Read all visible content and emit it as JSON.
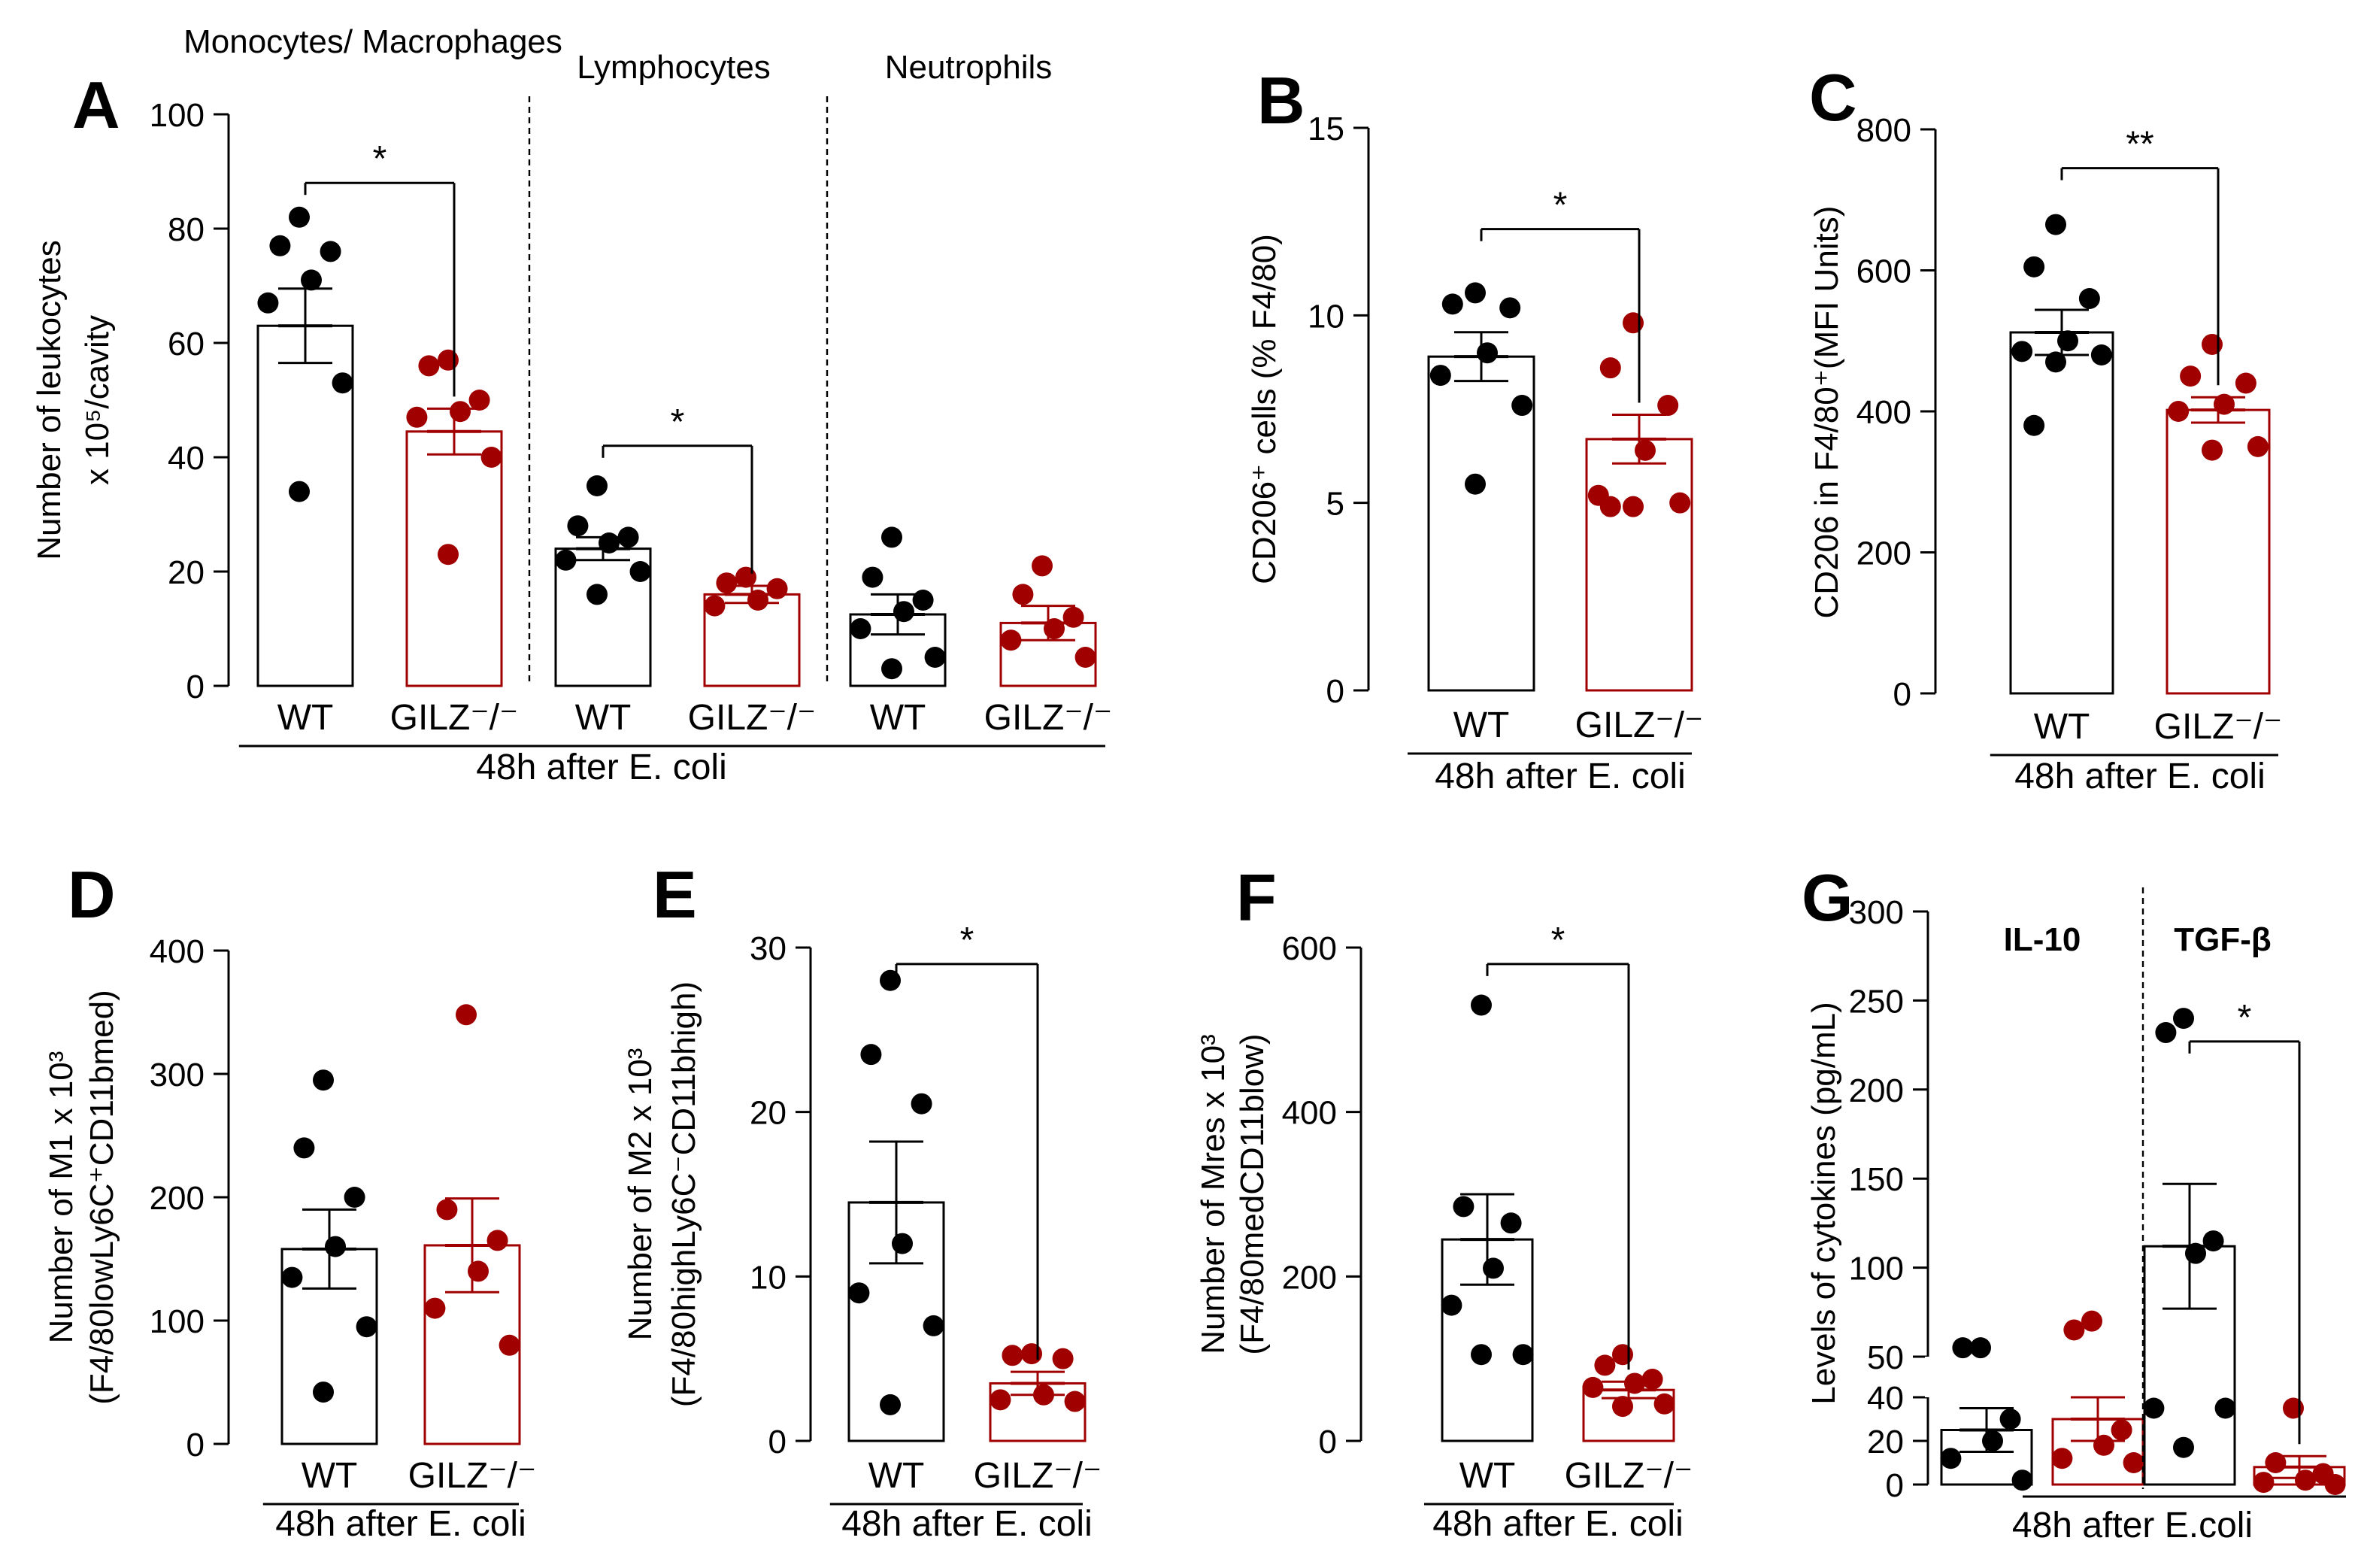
{
  "colors": {
    "wt": "#000000",
    "ko": "#a00000",
    "axis": "#000000"
  },
  "chart_data": [
    {
      "id": "A",
      "letter": "A",
      "type": "bar",
      "ylabel": [
        "Number of leukocytes",
        "x 10⁵/cavity"
      ],
      "ylim": [
        0,
        100
      ],
      "ticks": [
        0,
        20,
        40,
        60,
        80,
        100
      ],
      "categories": [
        "WT",
        "GILZ⁻/⁻",
        "WT",
        "GILZ⁻/⁻",
        "WT",
        "GILZ⁻/⁻"
      ],
      "groups": [
        "Monocytes/ Macrophages",
        "Lymphocytes",
        "Neutrophils"
      ],
      "xcaption": "48h after E. coli",
      "series": [
        {
          "name": "WT Monocytes/Macrophages",
          "group": "WT",
          "mean": 63,
          "sem": 6.5,
          "points": [
            82,
            77,
            76,
            71,
            67,
            53,
            34
          ]
        },
        {
          "name": "GILZ-/- Monocytes/Macrophages",
          "group": "GILZ",
          "mean": 44.5,
          "sem": 4,
          "points": [
            57,
            56,
            50,
            48,
            47,
            40,
            23
          ]
        },
        {
          "name": "WT Lymphocytes",
          "group": "WT",
          "mean": 24,
          "sem": 2,
          "points": [
            35,
            28,
            26,
            25,
            22,
            20,
            16
          ]
        },
        {
          "name": "GILZ-/- Lymphocytes",
          "group": "GILZ",
          "mean": 16,
          "sem": 1.5,
          "points": [
            19,
            18,
            17,
            15,
            14
          ]
        },
        {
          "name": "WT Neutrophils",
          "group": "WT",
          "mean": 12.5,
          "sem": 3.5,
          "points": [
            26,
            19,
            15,
            13,
            10,
            5,
            3
          ]
        },
        {
          "name": "GILZ-/- Neutrophils",
          "group": "GILZ",
          "mean": 11,
          "sem": 3,
          "points": [
            21,
            16,
            12,
            10,
            8,
            5
          ]
        }
      ],
      "significance": [
        {
          "from": 0,
          "to": 1,
          "y": 88,
          "label": "*"
        },
        {
          "from": 2,
          "to": 3,
          "y": 42,
          "label": "*"
        }
      ]
    },
    {
      "id": "B",
      "letter": "B",
      "type": "bar",
      "ylabel": [
        "CD206⁺ cells (% F4/80)"
      ],
      "ylim": [
        0,
        15
      ],
      "ticks": [
        0,
        5,
        10,
        15
      ],
      "categories": [
        "WT",
        "GILZ⁻/⁻"
      ],
      "xcaption": "48h after E. coli",
      "series": [
        {
          "name": "WT",
          "group": "WT",
          "mean": 8.9,
          "sem": 0.65,
          "points": [
            10.6,
            10.2,
            10.3,
            9.0,
            8.4,
            7.6,
            5.5
          ]
        },
        {
          "name": "GILZ-/-",
          "group": "GILZ",
          "mean": 6.7,
          "sem": 0.65,
          "points": [
            9.8,
            8.6,
            7.6,
            6.4,
            5.2,
            5.0,
            4.9,
            4.9
          ]
        }
      ],
      "significance": [
        {
          "from": 0,
          "to": 1,
          "y": 12.3,
          "label": "*"
        }
      ]
    },
    {
      "id": "C",
      "letter": "C",
      "type": "bar",
      "ylabel": [
        "CD206 in F4/80⁺(MFI Units)"
      ],
      "ylim": [
        0,
        800
      ],
      "ticks": [
        0,
        200,
        400,
        600,
        800
      ],
      "categories": [
        "WT",
        "GILZ⁻/⁻"
      ],
      "xcaption": "48h after E. coli",
      "series": [
        {
          "name": "WT",
          "group": "WT",
          "mean": 512,
          "sem": 32,
          "points": [
            665,
            605,
            560,
            500,
            485,
            480,
            470,
            380
          ]
        },
        {
          "name": "GILZ-/-",
          "group": "GILZ",
          "mean": 402,
          "sem": 18,
          "points": [
            495,
            450,
            440,
            410,
            400,
            350,
            345
          ]
        }
      ],
      "significance": [
        {
          "from": 0,
          "to": 1,
          "y": 745,
          "label": "**"
        }
      ]
    },
    {
      "id": "D",
      "letter": "D",
      "type": "bar",
      "ylabel": [
        "Number of M1 x 10³",
        "(F4/80^lowLy6C⁺CD11b^med)"
      ],
      "ylim": [
        0,
        400
      ],
      "ticks": [
        0,
        100,
        200,
        300,
        400
      ],
      "categories": [
        "WT",
        "GILZ⁻/⁻"
      ],
      "xcaption": "48h after E. coli",
      "series": [
        {
          "name": "WT",
          "group": "WT",
          "mean": 158,
          "sem": 32,
          "points": [
            295,
            240,
            200,
            160,
            135,
            95,
            42
          ]
        },
        {
          "name": "GILZ-/-",
          "group": "GILZ",
          "mean": 161,
          "sem": 38,
          "points": [
            348,
            190,
            165,
            140,
            110,
            80
          ]
        }
      ],
      "significance": []
    },
    {
      "id": "E",
      "letter": "E",
      "type": "bar",
      "ylabel": [
        "Number of M2 x 10³",
        "(F4/80^highLy6C⁻CD11b^high)"
      ],
      "ylim": [
        0,
        30
      ],
      "ticks": [
        0,
        10,
        20,
        30
      ],
      "categories": [
        "WT",
        "GILZ⁻/⁻"
      ],
      "xcaption": "48h after E. coli",
      "series": [
        {
          "name": "WT",
          "group": "WT",
          "mean": 14.5,
          "sem": 3.7,
          "points": [
            28,
            23.5,
            20.5,
            12,
            9,
            7,
            2.2
          ]
        },
        {
          "name": "GILZ-/-",
          "group": "GILZ",
          "mean": 3.5,
          "sem": 0.7,
          "points": [
            5.3,
            5.2,
            5.0,
            2.8,
            2.5,
            2.4
          ]
        }
      ],
      "significance": [
        {
          "from": 0,
          "to": 1,
          "y": 29,
          "label": "*"
        }
      ]
    },
    {
      "id": "F",
      "letter": "F",
      "type": "bar",
      "ylabel": [
        "Number of Mres x 10³",
        "(F4/80^medCD11b^low)"
      ],
      "ylim": [
        0,
        600
      ],
      "ticks": [
        0,
        200,
        400,
        600
      ],
      "categories": [
        "WT",
        "GILZ⁻/⁻"
      ],
      "xcaption": "48h after E. coli",
      "series": [
        {
          "name": "WT",
          "group": "WT",
          "mean": 245,
          "sem": 55,
          "points": [
            530,
            285,
            265,
            210,
            165,
            105,
            105
          ]
        },
        {
          "name": "GILZ-/-",
          "group": "GILZ",
          "mean": 62,
          "sem": 10,
          "points": [
            105,
            92,
            75,
            70,
            65,
            45,
            42
          ]
        }
      ],
      "significance": [
        {
          "from": 0,
          "to": 1,
          "y": 580,
          "label": "*"
        }
      ]
    },
    {
      "id": "G",
      "letter": "G",
      "type": "bar",
      "ylabel": [
        "Levels of cytokines (pg/mL)"
      ],
      "ylim": [
        0,
        300
      ],
      "ticks": [
        0,
        20,
        40,
        50,
        100,
        150,
        200,
        250,
        300
      ],
      "categories": [
        "",
        "",
        "",
        ""
      ],
      "groups": [
        "IL-10",
        "TGF-β"
      ],
      "xcaption": "48h after E.coli",
      "series": [
        {
          "name": "WT IL-10",
          "group": "WT",
          "mean": 25,
          "sem": 10,
          "points": [
            55,
            55,
            30,
            20,
            12,
            2
          ]
        },
        {
          "name": "GILZ-/- IL-10",
          "group": "GILZ",
          "mean": 30,
          "sem": 10,
          "points": [
            70,
            65,
            25,
            18,
            12,
            10
          ]
        },
        {
          "name": "WT TGF-β",
          "group": "WT",
          "mean": 112,
          "sem": 35,
          "points": [
            240,
            232,
            115,
            108,
            35,
            35,
            17
          ]
        },
        {
          "name": "GILZ-/- TGF-β",
          "group": "GILZ",
          "mean": 8,
          "sem": 5,
          "points": [
            35,
            10,
            5,
            2,
            1,
            0
          ]
        }
      ],
      "significance": [
        {
          "from": 2,
          "to": 3,
          "y": 227,
          "label": "*"
        }
      ]
    }
  ]
}
